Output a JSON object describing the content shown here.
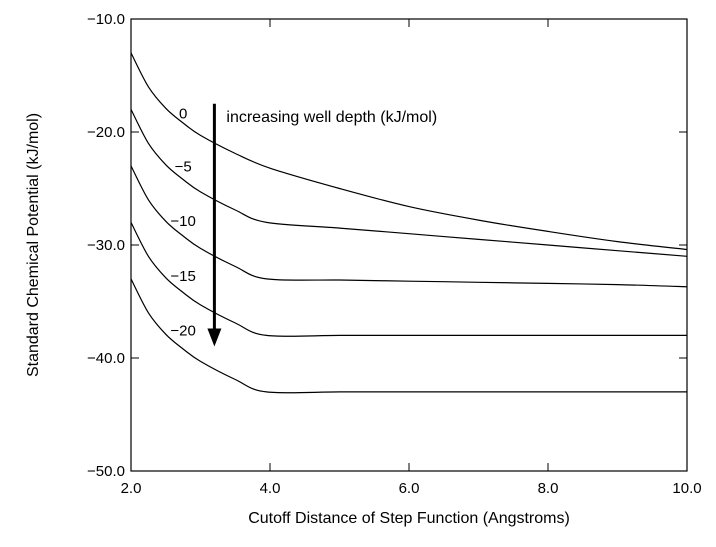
{
  "chart_data": {
    "type": "line",
    "xlabel": "Cutoff Distance of Step Function (Angstroms)",
    "ylabel": "Standard Chemical Potential (kJ/mol)",
    "xlim": [
      2.0,
      10.0
    ],
    "ylim": [
      -50.0,
      -10.0
    ],
    "xticks": [
      2.0,
      4.0,
      6.0,
      8.0,
      10.0
    ],
    "yticks": [
      -10.0,
      -20.0,
      -30.0,
      -40.0,
      -50.0
    ],
    "x_tick_labels": [
      "2.0",
      "4.0",
      "6.0",
      "8.0",
      "10.0"
    ],
    "y_tick_labels": [
      "−10.0",
      "−20.0",
      "−30.0",
      "−40.0",
      "−50.0"
    ],
    "grid": false,
    "annotation": {
      "text": "increasing well depth (kJ/mol)",
      "arrow_x": 3.2,
      "arrow_y_from": -17.5,
      "arrow_y_to": -38.8
    },
    "series": [
      {
        "name": "0",
        "label_x": 2.75,
        "label_y": -18.8,
        "x": [
          2.0,
          2.25,
          2.5,
          2.75,
          3.0,
          3.5,
          4.0,
          5.0,
          6.0,
          7.0,
          8.0,
          9.0,
          10.0
        ],
        "y": [
          -13.0,
          -16.0,
          -17.9,
          -19.2,
          -20.3,
          -21.9,
          -23.2,
          -25.0,
          -26.6,
          -27.8,
          -28.8,
          -29.7,
          -30.4
        ]
      },
      {
        "name": "−5",
        "label_x": 2.75,
        "label_y": -23.5,
        "x": [
          2.0,
          2.25,
          2.5,
          2.75,
          3.0,
          3.5,
          3.95,
          5.0,
          6.0,
          7.0,
          8.0,
          9.0,
          10.0
        ],
        "y": [
          -18.0,
          -21.0,
          -22.9,
          -24.2,
          -25.3,
          -26.9,
          -28.0,
          -28.5,
          -29.0,
          -29.5,
          -30.0,
          -30.5,
          -31.0
        ]
      },
      {
        "name": "−10",
        "label_x": 2.75,
        "label_y": -28.3,
        "x": [
          2.0,
          2.25,
          2.5,
          2.75,
          3.0,
          3.5,
          3.95,
          5.0,
          6.0,
          7.0,
          8.0,
          9.0,
          10.0
        ],
        "y": [
          -23.0,
          -26.0,
          -27.9,
          -29.2,
          -30.3,
          -31.9,
          -33.0,
          -33.1,
          -33.2,
          -33.3,
          -33.4,
          -33.5,
          -33.7
        ]
      },
      {
        "name": "−15",
        "label_x": 2.75,
        "label_y": -33.2,
        "x": [
          2.0,
          2.25,
          2.5,
          2.75,
          3.0,
          3.5,
          3.95,
          5.0,
          6.0,
          7.0,
          8.0,
          9.0,
          10.0
        ],
        "y": [
          -28.0,
          -31.0,
          -32.9,
          -34.2,
          -35.3,
          -36.9,
          -38.0,
          -38.0,
          -38.0,
          -38.0,
          -38.0,
          -38.0,
          -38.0
        ]
      },
      {
        "name": "−20",
        "label_x": 2.75,
        "label_y": -38.0,
        "x": [
          2.0,
          2.25,
          2.5,
          2.75,
          3.0,
          3.5,
          3.95,
          5.0,
          6.0,
          7.0,
          8.0,
          9.0,
          10.0
        ],
        "y": [
          -33.0,
          -36.0,
          -37.9,
          -39.2,
          -40.3,
          -41.9,
          -43.0,
          -43.0,
          -43.0,
          -43.0,
          -43.0,
          -43.0,
          -43.0
        ]
      }
    ]
  }
}
